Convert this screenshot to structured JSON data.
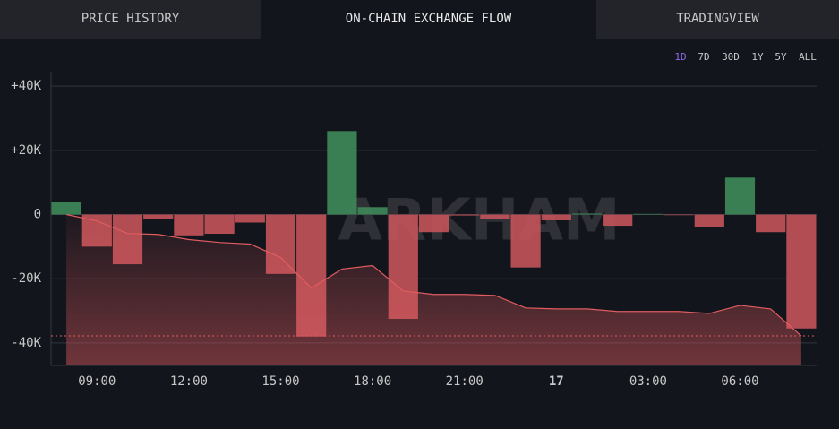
{
  "tabs": [
    "PRICE HISTORY",
    "ON-CHAIN EXCHANGE FLOW",
    "TRADINGVIEW"
  ],
  "active_tab": 1,
  "ranges": [
    "1D",
    "7D",
    "30D",
    "1Y",
    "5Y",
    "ALL"
  ],
  "active_range": 0,
  "watermark": "ARKHAM",
  "chart_data": {
    "type": "bar",
    "categories": [
      null,
      "09:00",
      null,
      null,
      "12:00",
      null,
      null,
      "15:00",
      null,
      null,
      "18:00",
      null,
      null,
      "21:00",
      null,
      null,
      "17",
      null,
      null,
      "03:00",
      null,
      null,
      "06:00",
      null,
      null
    ],
    "series": [
      {
        "type": "bar",
        "positive_color": "#3f8a5a",
        "negative_color": "#c4545a",
        "values": [
          4000,
          -10000,
          -15500,
          -1500,
          -6500,
          -6000,
          -2500,
          -18500,
          -38000,
          26000,
          2300,
          -32500,
          -5500,
          -300,
          -1500,
          -16500,
          -1800,
          300,
          -3500,
          200,
          -200,
          -4000,
          11500,
          -5500,
          -35500
        ]
      },
      {
        "type": "line",
        "color": "#e05c60",
        "values": [
          0,
          -2000,
          -5900,
          -6200,
          -7800,
          -8700,
          -9200,
          -13400,
          -22900,
          -17000,
          -15900,
          -23800,
          -24900,
          -24900,
          -25200,
          -29100,
          -29400,
          -29400,
          -30200,
          -30200,
          -30200,
          -30800,
          -28300,
          -29400,
          -37800
        ]
      }
    ],
    "reference_line": -37800,
    "ylim": [
      -47000,
      44500
    ],
    "yticks": [
      {
        "value": 40000,
        "label": "+40K"
      },
      {
        "value": 20000,
        "label": "+20K"
      },
      0,
      {
        "value": -20000,
        "label": "-20K"
      },
      {
        "value": -40000,
        "label": "-40K"
      }
    ],
    "grid": true
  }
}
